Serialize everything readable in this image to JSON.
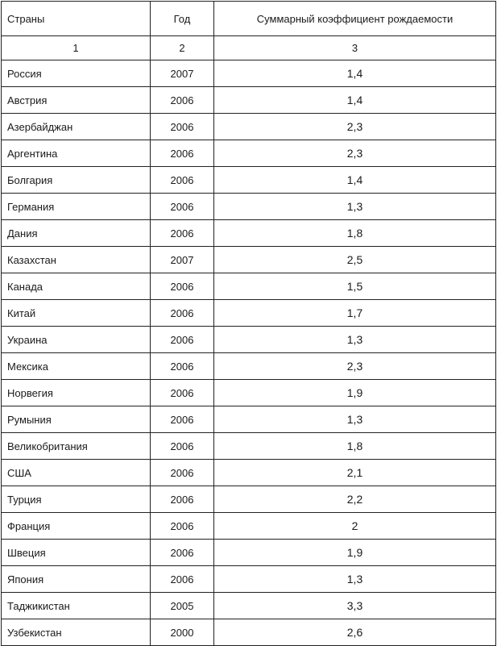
{
  "header": {
    "col1": "Страны",
    "col2": "Год",
    "col3": "Суммарный коэффициент рождаемости"
  },
  "column_numbers": [
    "1",
    "2",
    "3"
  ],
  "rows": [
    {
      "country": "Россия",
      "year": "2007",
      "value": "1,4"
    },
    {
      "country": "Австрия",
      "year": "2006",
      "value": "1,4"
    },
    {
      "country": "Азербайджан",
      "year": "2006",
      "value": "2,3"
    },
    {
      "country": "Аргентина",
      "year": "2006",
      "value": "2,3"
    },
    {
      "country": "Болгария",
      "year": "2006",
      "value": "1,4"
    },
    {
      "country": "Германия",
      "year": "2006",
      "value": "1,3"
    },
    {
      "country": "Дания",
      "year": "2006",
      "value": "1,8"
    },
    {
      "country": "Казахстан",
      "year": "2007",
      "value": "2,5"
    },
    {
      "country": "Канада",
      "year": "2006",
      "value": "1,5"
    },
    {
      "country": "Китай",
      "year": "2006",
      "value": "1,7"
    },
    {
      "country": "Украина",
      "year": "2006",
      "value": "1,3"
    },
    {
      "country": "Мексика",
      "year": "2006",
      "value": "2,3"
    },
    {
      "country": "Норвегия",
      "year": "2006",
      "value": "1,9"
    },
    {
      "country": "Румыния",
      "year": "2006",
      "value": "1,3"
    },
    {
      "country": "Великобритания",
      "year": "2006",
      "value": "1,8"
    },
    {
      "country": "США",
      "year": "2006",
      "value": "2,1"
    },
    {
      "country": "Турция",
      "year": "2006",
      "value": "2,2"
    },
    {
      "country": "Франция",
      "year": "2006",
      "value": "2"
    },
    {
      "country": "Швеция",
      "year": "2006",
      "value": "1,9"
    },
    {
      "country": "Япония",
      "year": "2006",
      "value": "1,3"
    },
    {
      "country": "Таджикистан",
      "year": "2005",
      "value": "3,3"
    },
    {
      "country": "Узбекистан",
      "year": "2000",
      "value": "2,6"
    }
  ]
}
